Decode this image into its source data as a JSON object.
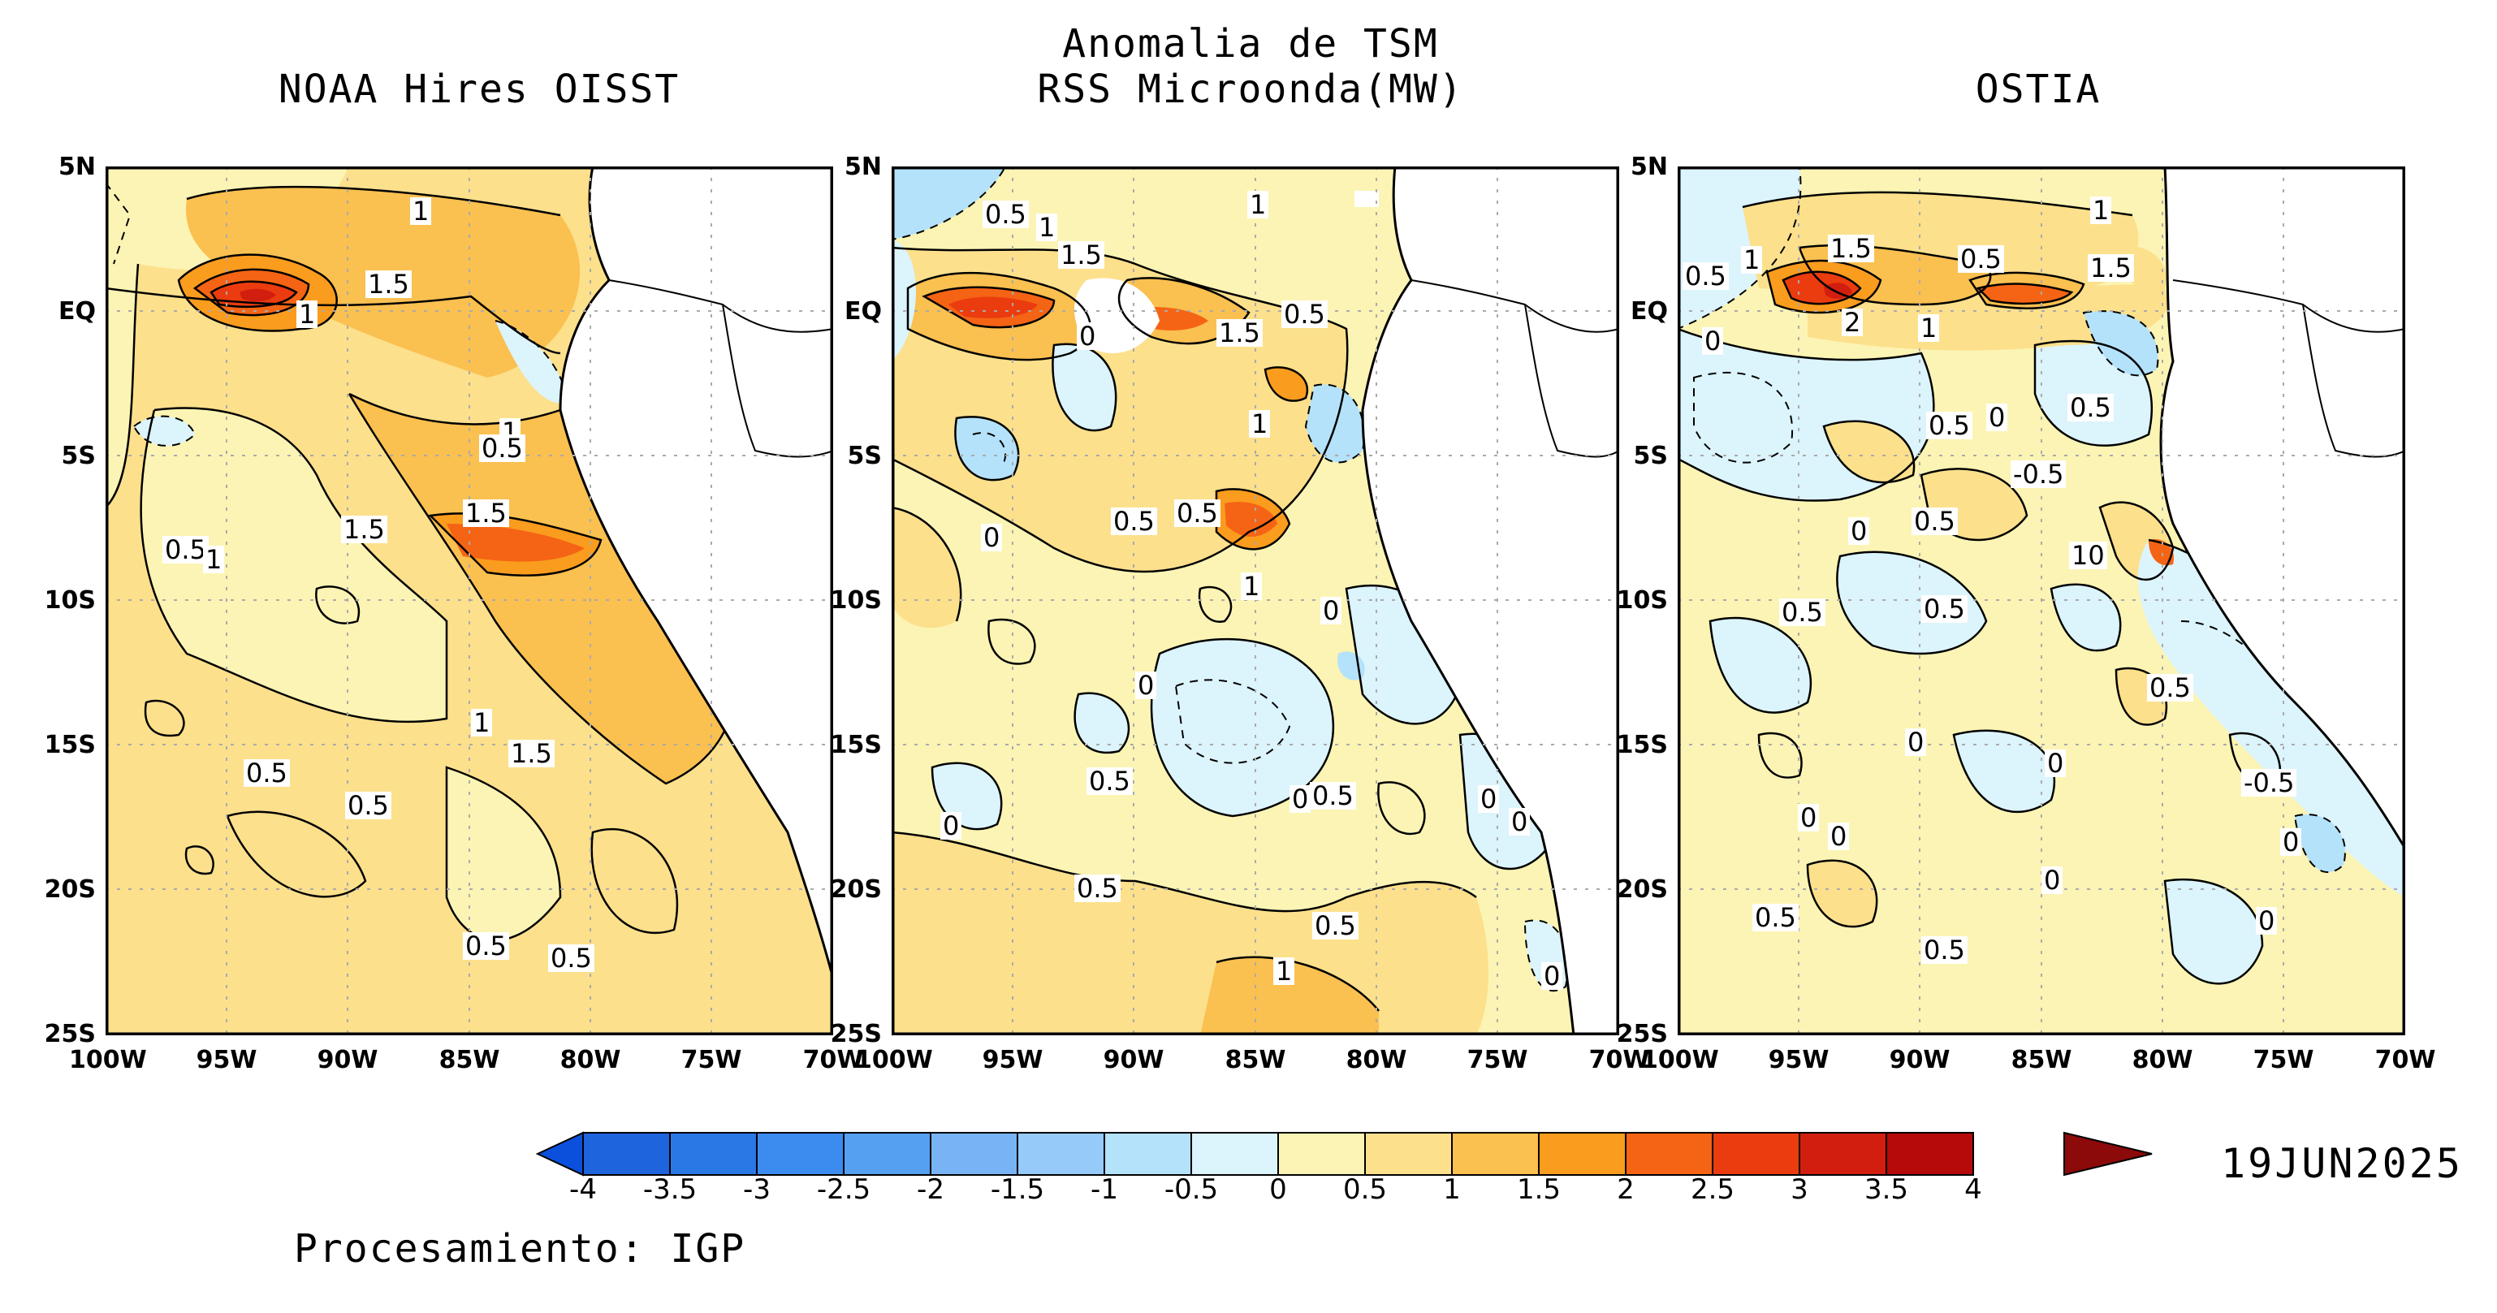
{
  "header": {
    "center_title_line1": "Anomalia de TSM",
    "center_title_line2": "RSS Microonda(MW)",
    "left_title": "NOAA Hires OISST",
    "right_title": "OSTIA"
  },
  "axes": {
    "lat_labels": [
      "5N",
      "EQ",
      "5S",
      "10S",
      "15S",
      "20S",
      "25S"
    ],
    "lon_labels": [
      "100W",
      "95W",
      "90W",
      "85W",
      "80W",
      "75W",
      "70W"
    ]
  },
  "panels": [
    {
      "name": "NOAA Hires OISST",
      "contour_labels": [
        "1",
        "1.5",
        "1",
        "1",
        "0.5",
        "0.5",
        "1",
        "1.5",
        "1.5",
        "1",
        "1.5",
        "0.5",
        "0.5",
        "0.5",
        "0.5"
      ]
    },
    {
      "name": "RSS Microonda(MW)",
      "contour_labels": [
        "0.5",
        "1",
        "1.5",
        "0",
        "1.5",
        "0.5",
        "1",
        "1",
        "0.5",
        "0.5",
        "0",
        "1",
        "0",
        "0",
        "0.5",
        "0",
        "0.5",
        "0",
        "0",
        "0",
        "0.5",
        "0.5",
        "1",
        "0"
      ]
    },
    {
      "name": "OSTIA",
      "contour_labels": [
        "0.5",
        "1",
        "1.5",
        "0.5",
        "1",
        "1.5",
        "0",
        "2",
        "1",
        "0.5",
        "0",
        "0.5",
        "-0.5",
        "0",
        "0.5",
        "10",
        "0.5",
        "0.5",
        "0.5",
        "0",
        "0",
        "-0.5",
        "0",
        "0",
        "0",
        "0.5",
        "0.5",
        "0",
        "0"
      ]
    }
  ],
  "colorbar": {
    "ticks": [
      "-4",
      "-3.5",
      "-3",
      "-2.5",
      "-2",
      "-1.5",
      "-1",
      "-0.5",
      "0",
      "0.5",
      "1",
      "1.5",
      "2",
      "2.5",
      "3",
      "3.5",
      "4"
    ],
    "colors": [
      "#1e64dc",
      "#2a78e6",
      "#3c8cf0",
      "#55a0f0",
      "#78b4f5",
      "#96caf8",
      "#b4e2fa",
      "#dcf4fc",
      "#fcf4b4",
      "#fce08c",
      "#fac050",
      "#fa9c1e",
      "#f56414",
      "#eb3c0f",
      "#d21e0f",
      "#b40a0a"
    ],
    "low_arrow_color": "#0a50dc",
    "high_arrow_color": "#8c0a0a"
  },
  "date": "19JUN2025",
  "footer": "Procesamiento: IGP"
}
